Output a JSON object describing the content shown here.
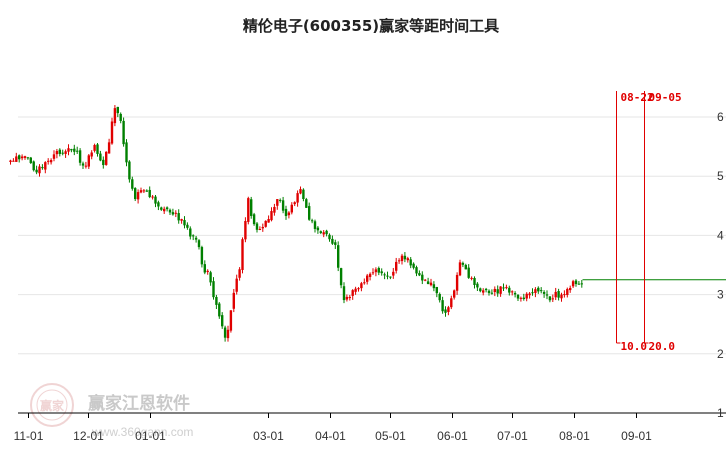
{
  "chart_data": {
    "type": "candlestick",
    "title": "精伦电子(600355)赢家等距时间工具",
    "xlabel": "",
    "ylabel": "",
    "ylim": [
      1,
      6.4
    ],
    "yticks": [
      6,
      5,
      4,
      3,
      2,
      1
    ],
    "xticks": [
      {
        "label": "11-01",
        "day": 0
      },
      {
        "label": "12-01",
        "day": 30
      },
      {
        "label": "01-01",
        "day": 61
      },
      {
        "label": "03-01",
        "day": 120
      },
      {
        "label": "04-01",
        "day": 151
      },
      {
        "label": "05-01",
        "day": 181
      },
      {
        "label": "06-01",
        "day": 212
      },
      {
        "label": "07-01",
        "day": 242
      },
      {
        "label": "08-01",
        "day": 273
      },
      {
        "label": "09-01",
        "day": 304
      }
    ],
    "up_color": "#e00000",
    "down_color": "#008000",
    "grid": true,
    "price_path": [
      [
        -9,
        5.25
      ],
      [
        -2,
        5.35
      ],
      [
        4,
        5.05
      ],
      [
        10,
        5.3
      ],
      [
        16,
        5.4
      ],
      [
        22,
        5.5
      ],
      [
        28,
        5.15
      ],
      [
        33,
        5.5
      ],
      [
        37,
        5.15
      ],
      [
        40,
        5.55
      ],
      [
        43,
        6.2
      ],
      [
        46,
        5.95
      ],
      [
        48,
        5.5
      ],
      [
        50,
        5.05
      ],
      [
        53,
        4.65
      ],
      [
        57,
        4.75
      ],
      [
        61,
        4.65
      ],
      [
        64,
        4.5
      ],
      [
        69,
        4.4
      ],
      [
        75,
        4.3
      ],
      [
        81,
        4.0
      ],
      [
        85,
        3.9
      ],
      [
        87,
        3.45
      ],
      [
        90,
        3.35
      ],
      [
        93,
        2.85
      ],
      [
        96,
        2.6
      ],
      [
        99,
        2.2
      ],
      [
        102,
        3.0
      ],
      [
        105,
        3.3
      ],
      [
        107,
        3.95
      ],
      [
        110,
        4.6
      ],
      [
        112,
        4.2
      ],
      [
        115,
        4.05
      ],
      [
        119,
        4.25
      ],
      [
        122,
        4.45
      ],
      [
        125,
        4.65
      ],
      [
        129,
        4.35
      ],
      [
        132,
        4.55
      ],
      [
        136,
        4.75
      ],
      [
        140,
        4.3
      ],
      [
        143,
        4.1
      ],
      [
        147,
        4.05
      ],
      [
        151,
        3.9
      ],
      [
        154,
        3.75
      ],
      [
        156,
        3.15
      ],
      [
        158,
        2.85
      ],
      [
        162,
        3.05
      ],
      [
        168,
        3.25
      ],
      [
        172,
        3.35
      ],
      [
        176,
        3.4
      ],
      [
        180,
        3.3
      ],
      [
        184,
        3.5
      ],
      [
        186,
        3.7
      ],
      [
        190,
        3.55
      ],
      [
        194,
        3.35
      ],
      [
        197,
        3.25
      ],
      [
        202,
        3.2
      ],
      [
        205,
        2.95
      ],
      [
        208,
        2.7
      ],
      [
        211,
        2.9
      ],
      [
        214,
        3.25
      ],
      [
        216,
        3.55
      ],
      [
        220,
        3.3
      ],
      [
        223,
        3.15
      ],
      [
        227,
        3.05
      ],
      [
        231,
        3.0
      ],
      [
        237,
        3.1
      ],
      [
        241,
        3.05
      ],
      [
        246,
        2.95
      ],
      [
        252,
        3.0
      ],
      [
        256,
        3.1
      ],
      [
        260,
        2.95
      ],
      [
        265,
        3.0
      ],
      [
        270,
        3.05
      ],
      [
        272,
        3.2
      ],
      [
        275,
        3.15
      ],
      [
        277,
        3.2
      ]
    ],
    "projection": {
      "value": 3.25,
      "from_day": 277,
      "to_day": 330
    },
    "markers": [
      {
        "date_label": "08-22",
        "value_label": "10.0",
        "day": 294
      },
      {
        "date_label": "09-05",
        "value_label": "20.0",
        "day": 308
      }
    ],
    "watermark": {
      "name": "赢家江恩软件",
      "url": "www.360gann.com",
      "seal": "赢家"
    }
  }
}
